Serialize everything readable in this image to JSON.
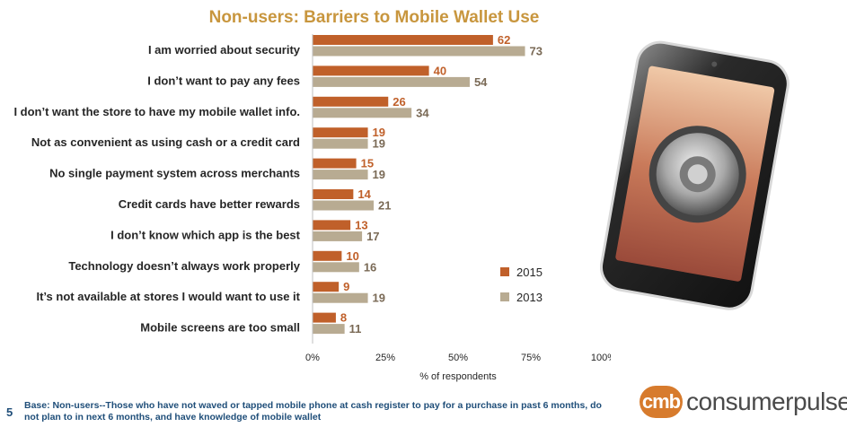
{
  "chart_data": {
    "type": "bar",
    "orientation": "horizontal",
    "title": "Non-users: Barriers to Mobile Wallet Use",
    "xlabel": "% of respondents",
    "ylabel": "",
    "xlim": [
      0,
      100
    ],
    "x_ticks": [
      "0%",
      "25%",
      "50%",
      "75%",
      "100%"
    ],
    "grid": false,
    "legend_position": "right",
    "categories": [
      "I am worried about security",
      "I don’t want to pay any fees",
      "I don’t want the store to have my mobile wallet info.",
      "Not as convenient as using cash or a credit card",
      "No single payment system across merchants",
      "Credit cards have better rewards",
      "I don’t know which app is the best",
      "Technology doesn’t always work properly",
      "It’s not available at stores I would want to use it",
      "Mobile screens are too small"
    ],
    "series": [
      {
        "name": "2015",
        "color": "#c0602a",
        "values": [
          62,
          40,
          26,
          19,
          15,
          14,
          13,
          10,
          9,
          8
        ]
      },
      {
        "name": "2013",
        "color": "#b8ab92",
        "values": [
          73,
          54,
          34,
          19,
          19,
          21,
          17,
          16,
          19,
          11
        ]
      }
    ]
  },
  "slide_number": "5",
  "footnote": "Base: Non-users--Those who have not waved or tapped mobile phone at cash register to pay for a purchase in past 6 months, do not plan to in next 6 months, and have knowledge of mobile wallet",
  "logo": {
    "mark": "cmb",
    "text": "consumerpulse",
    "accent": "#d77b2d"
  },
  "illustration": {
    "icon": "smartphone-with-safe-lock-icon"
  }
}
